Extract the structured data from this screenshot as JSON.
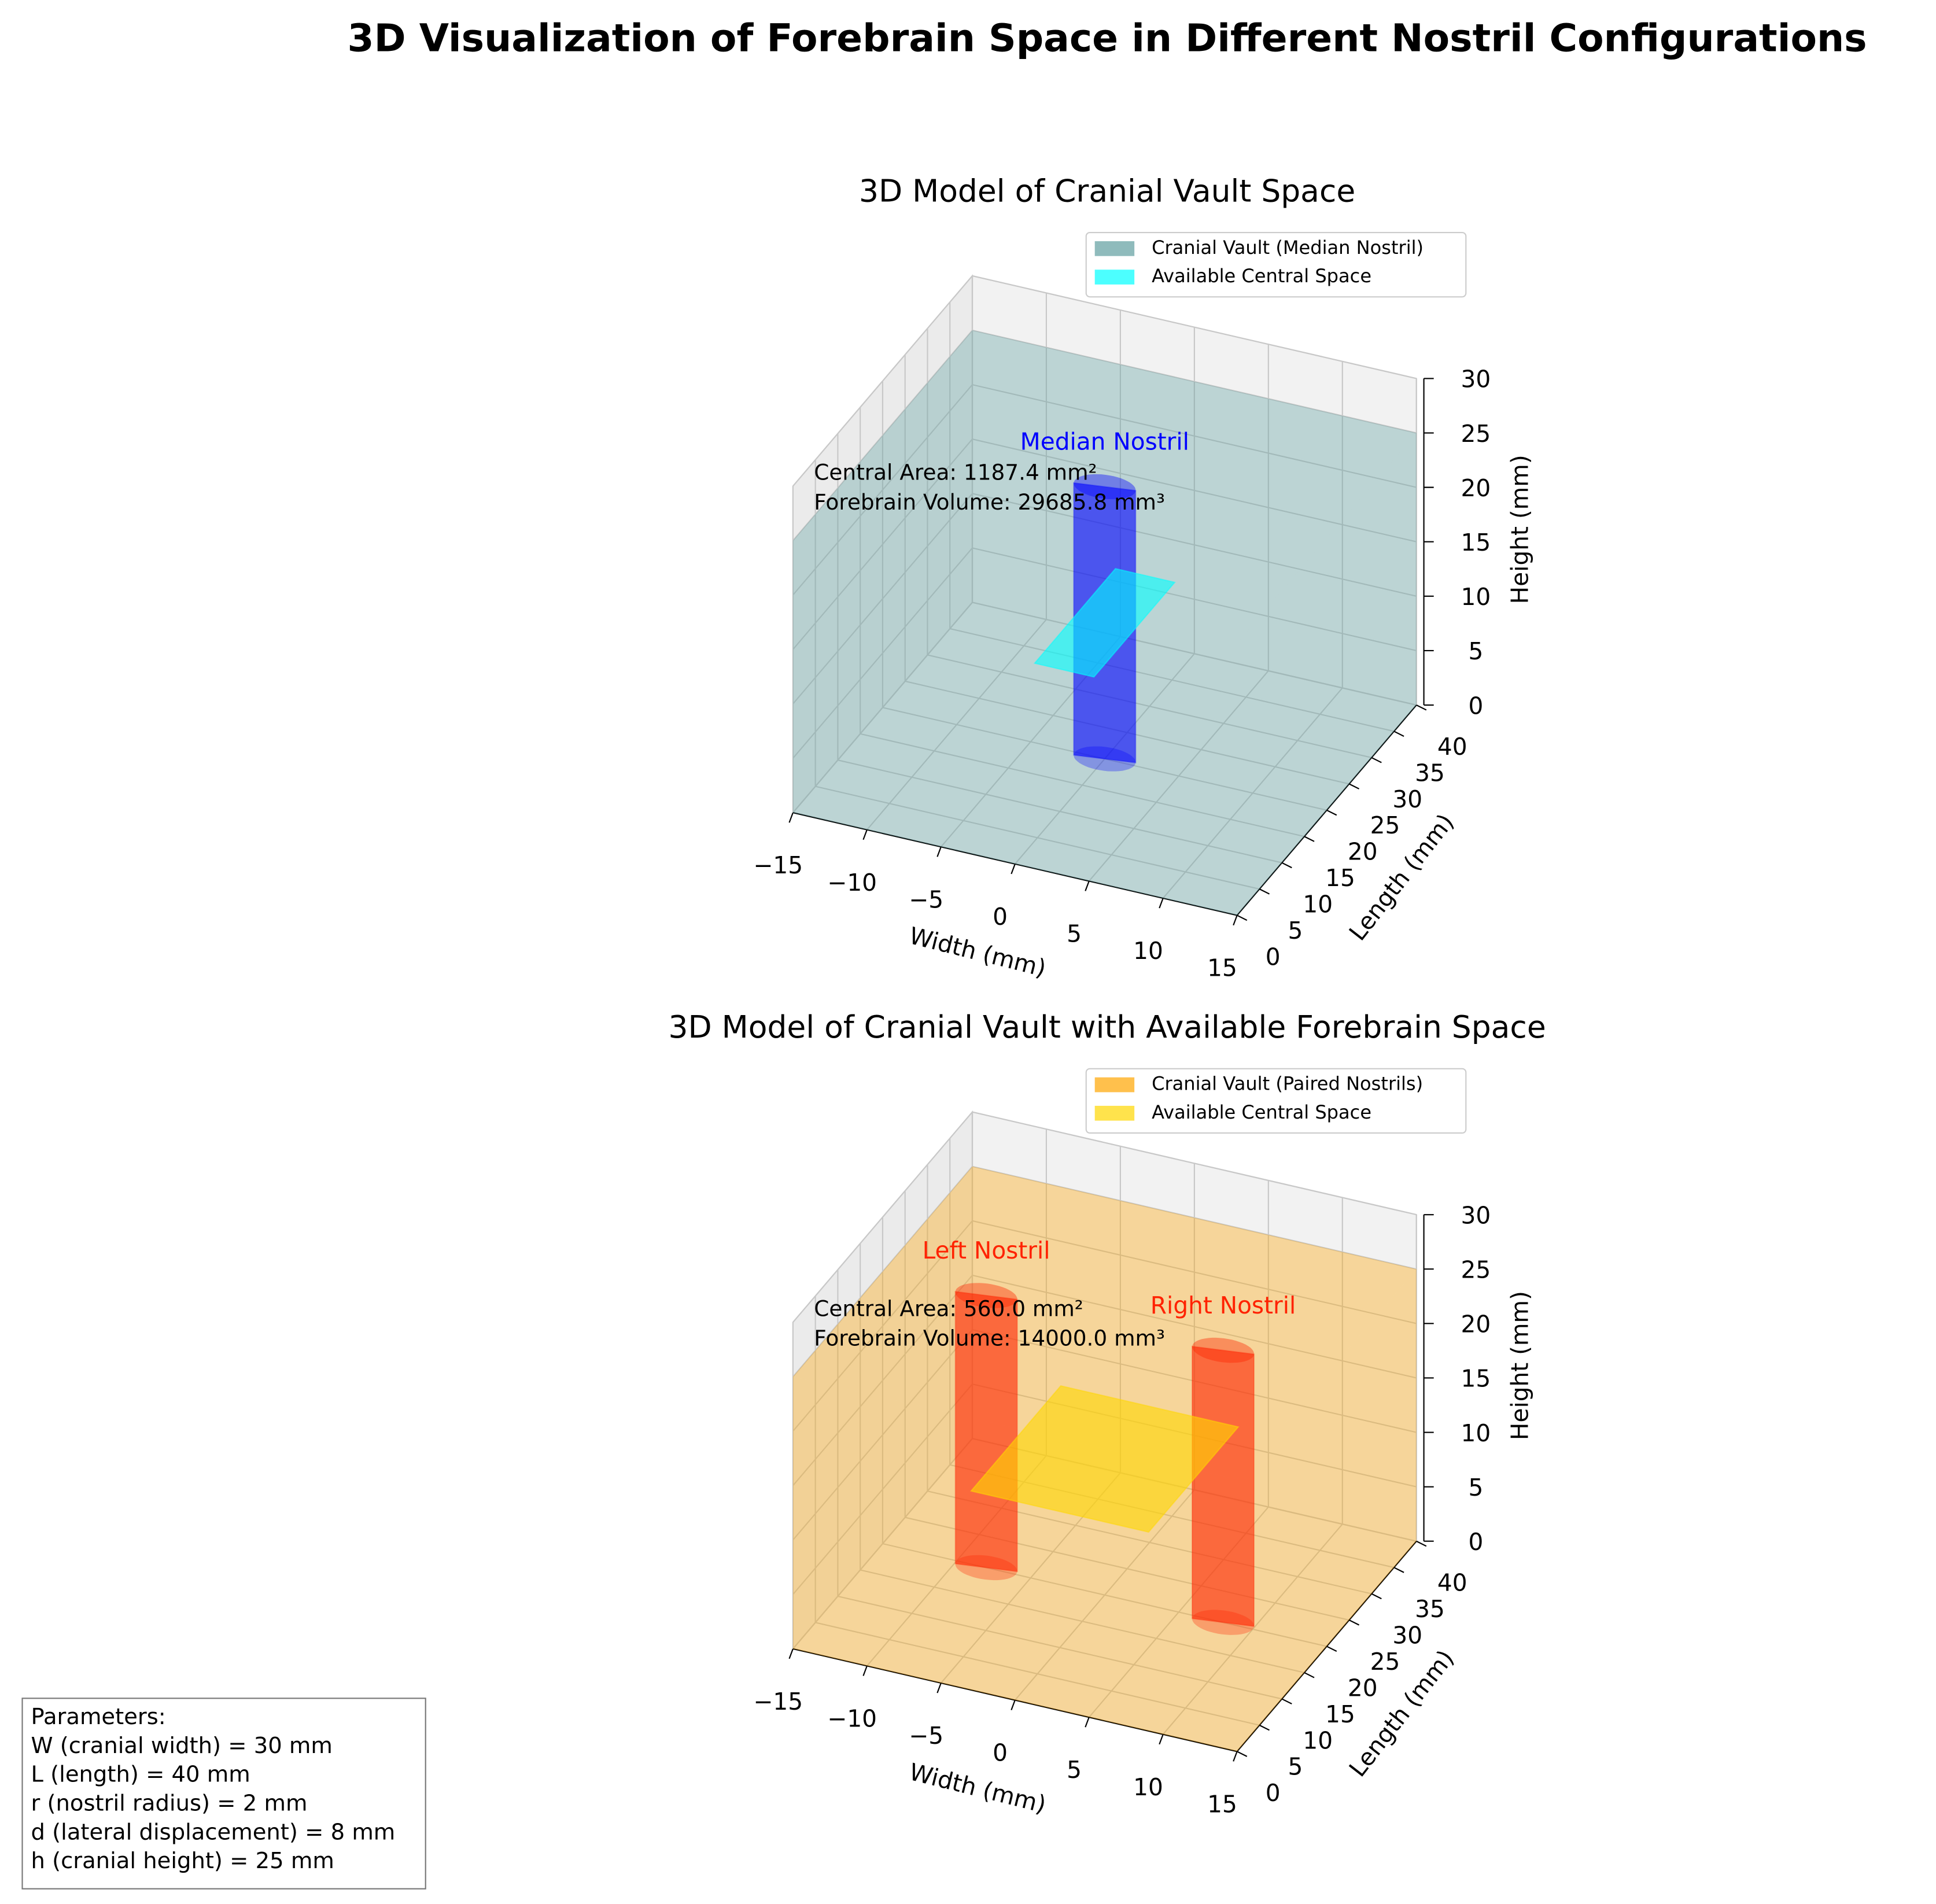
{
  "title": "3D Visualization of Forebrain Space in Different Nostril Configurations",
  "chart_data": [
    {
      "type": "box3d",
      "title": "3D Model of Cranial Vault Space",
      "xlabel": "Width (mm)",
      "ylabel": "Length (mm)",
      "zlabel": "Height (mm)",
      "xlim": [
        -15,
        15
      ],
      "ylim": [
        0,
        40
      ],
      "zlim": [
        0,
        30
      ],
      "xticks": [
        {
          "value": -15,
          "label": "−15"
        },
        {
          "value": -10,
          "label": "−10"
        },
        {
          "value": -5,
          "label": "−5"
        },
        0,
        5,
        10,
        15
      ],
      "yticks": [
        0,
        5,
        10,
        15,
        20,
        25,
        30,
        35,
        40
      ],
      "zticks": [
        0,
        5,
        10,
        15,
        20,
        25,
        30
      ],
      "series": [
        {
          "name": "Cranial Vault (Median Nostril)",
          "color": "#5f9ea0",
          "x": [
            -15,
            15
          ],
          "y": [
            0,
            40
          ],
          "z": [
            0,
            25
          ]
        },
        {
          "name": "Available Central Space",
          "color": "#00ffff",
          "x": [
            -2,
            2
          ],
          "y": [
            11,
            29
          ],
          "z": 12.5
        }
      ],
      "nostrils": [
        {
          "name": "Median Nostril",
          "color": "#0000ff",
          "x": 0,
          "y": 20,
          "r": 2,
          "z": [
            0,
            25
          ]
        }
      ],
      "annotations": [
        "Central Area: 1187.4 mm²",
        "Forebrain Volume: 29685.8 mm³"
      ]
    },
    {
      "type": "box3d",
      "title": "3D Model of Cranial Vault with Available Forebrain Space",
      "xlabel": "Width (mm)",
      "ylabel": "Length (mm)",
      "zlabel": "Height (mm)",
      "xlim": [
        -15,
        15
      ],
      "ylim": [
        0,
        40
      ],
      "zlim": [
        0,
        30
      ],
      "xticks": [
        {
          "value": -15,
          "label": "−15"
        },
        {
          "value": -10,
          "label": "−10"
        },
        {
          "value": -5,
          "label": "−5"
        },
        0,
        5,
        10,
        15
      ],
      "yticks": [
        0,
        5,
        10,
        15,
        20,
        25,
        30,
        35,
        40
      ],
      "zticks": [
        0,
        5,
        10,
        15,
        20,
        25,
        30
      ],
      "series": [
        {
          "name": "Cranial Vault (Paired Nostrils)",
          "color": "#ffa500",
          "x": [
            -15,
            15
          ],
          "y": [
            0,
            40
          ],
          "z": [
            0,
            25
          ]
        },
        {
          "name": "Available Central Space",
          "color": "#ffd700",
          "x": [
            -6,
            6
          ],
          "y": [
            10,
            30
          ],
          "z": 12.5
        }
      ],
      "nostrils": [
        {
          "name": "Left Nostril",
          "color": "#ff2200",
          "x": -8,
          "y": 20,
          "r": 2,
          "z": [
            0,
            25
          ]
        },
        {
          "name": "Right Nostril",
          "color": "#ff2200",
          "x": 8,
          "y": 20,
          "r": 2,
          "z": [
            0,
            25
          ]
        }
      ],
      "annotations": [
        "Central Area: 560.0 mm²",
        "Forebrain Volume: 14000.0 mm³"
      ]
    }
  ],
  "parameters": {
    "title": "Parameters:",
    "lines": [
      "W (cranial width) = 30 mm",
      "L (length) = 40 mm",
      "r (nostril radius) = 2 mm",
      "d (lateral displacement) = 8 mm",
      "h (cranial height) = 25 mm"
    ]
  }
}
